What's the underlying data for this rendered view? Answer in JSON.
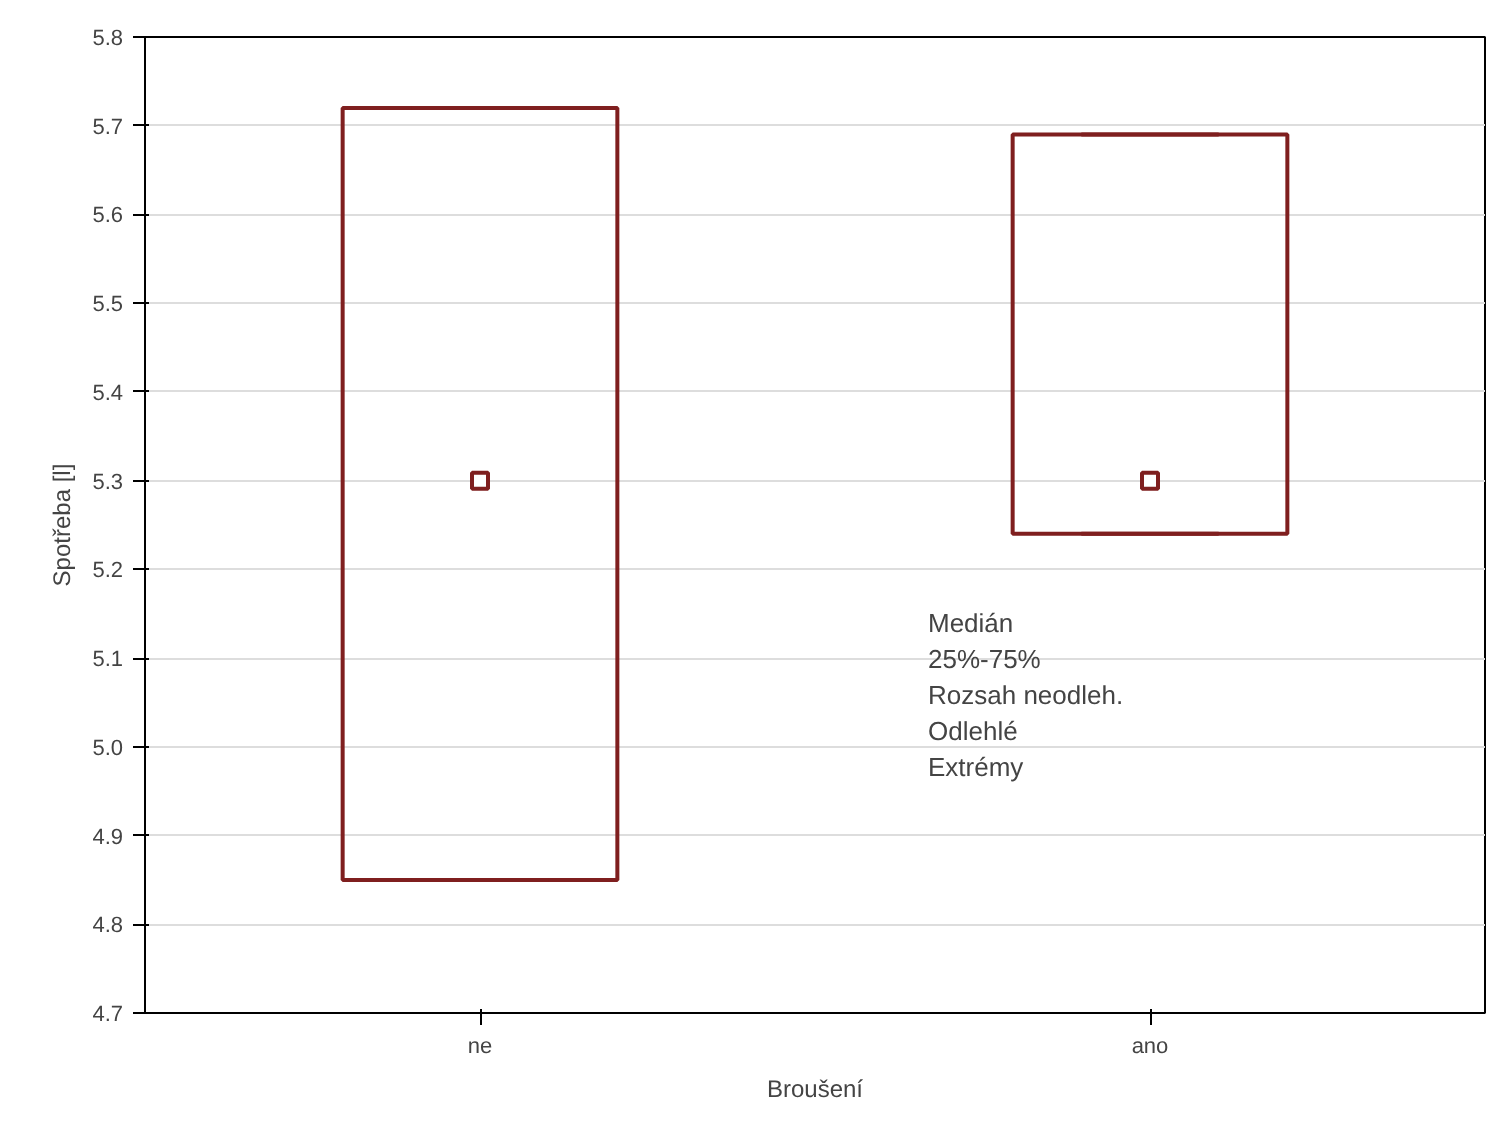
{
  "chart_data": {
    "type": "box",
    "xlabel": "Broušení",
    "ylabel": "Spotřeba [l]",
    "categories": [
      "ne",
      "ano"
    ],
    "boxes": [
      {
        "low": 4.85,
        "q1": 4.85,
        "median": 5.3,
        "q3": 5.72,
        "high": 5.72
      },
      {
        "low": 5.24,
        "q1": 5.24,
        "median": 5.3,
        "q3": 5.69,
        "high": 5.69
      }
    ],
    "color": "#7f1f1f",
    "ylim": [
      4.7,
      5.8
    ],
    "yticks": [
      {
        "value": 4.7,
        "label": "4.7"
      },
      {
        "value": 4.8,
        "label": "4.8"
      },
      {
        "value": 4.9,
        "label": "4.9"
      },
      {
        "value": 5.0,
        "label": "5.0"
      },
      {
        "value": 5.1,
        "label": "5.1"
      },
      {
        "value": 5.2,
        "label": "5.2"
      },
      {
        "value": 5.3,
        "label": "5.3"
      },
      {
        "value": 5.4,
        "label": "5.4"
      },
      {
        "value": 5.5,
        "label": "5.5"
      },
      {
        "value": 5.6,
        "label": "5.6"
      },
      {
        "value": 5.7,
        "label": "5.7"
      },
      {
        "value": 5.8,
        "label": "5.8"
      }
    ],
    "grid": "y",
    "annotations": [
      "Medián",
      "25%-75%",
      "Rozsah neodleh.",
      "Odlehlé",
      "Extrémy"
    ]
  }
}
